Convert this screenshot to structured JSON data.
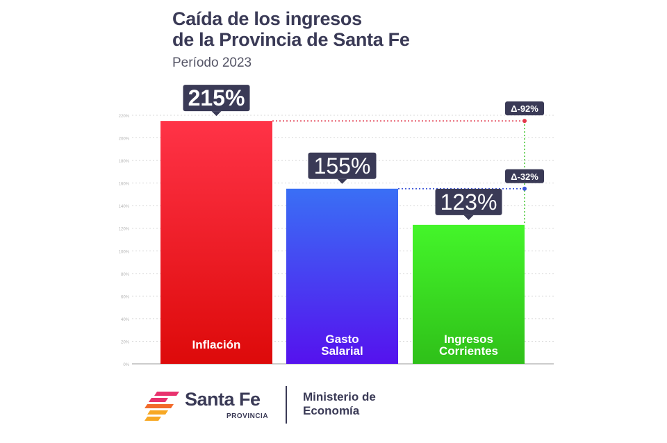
{
  "header": {
    "title_line1": "Caída de los ingresos",
    "title_line2": "de la Provincia de Santa Fe",
    "subtitle": "Período 2023"
  },
  "chart_data": {
    "type": "bar",
    "categories": [
      "Inflación",
      "Gasto Salarial",
      "Ingresos Corrientes"
    ],
    "category_lines": [
      [
        "Inflación"
      ],
      [
        "Gasto",
        "Salarial"
      ],
      [
        "Ingresos",
        "Corrientes"
      ]
    ],
    "values": [
      215,
      155,
      123
    ],
    "value_labels": [
      "215%",
      "155%",
      "123%"
    ],
    "bar_colors": [
      [
        "#ff3347",
        "#dd0a0a"
      ],
      [
        "#3a6ff5",
        "#5512ee"
      ],
      [
        "#44f52a",
        "#2fc019"
      ]
    ],
    "ylim": [
      0,
      220
    ],
    "y_ticks": [
      0,
      20,
      40,
      60,
      80,
      100,
      120,
      140,
      160,
      180,
      200,
      220
    ],
    "y_tick_labels": [
      "0%",
      "20%",
      "40%",
      "60%",
      "80%",
      "100%",
      "120%",
      "140%",
      "160%",
      "180%",
      "200%",
      "220%"
    ],
    "grid": true,
    "annotations": [
      {
        "label": "Δ-92%",
        "from_value": 215,
        "to_value": 123,
        "color": "#e2384a"
      },
      {
        "label": "Δ-32%",
        "from_value": 155,
        "to_value": 123,
        "color": "#3d56d8"
      }
    ],
    "connector_color": "#2fc019"
  },
  "footer": {
    "brand_name": "Santa Fe",
    "brand_sub": "PROVINCIA",
    "ministry_line1": "Ministerio de",
    "ministry_line2": "Economía",
    "logo_colors": [
      "#e8326e",
      "#f26a2a",
      "#f7a823"
    ]
  }
}
